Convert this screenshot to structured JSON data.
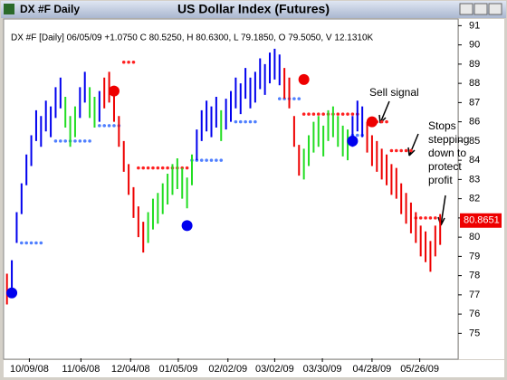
{
  "window_title": "DX #F Daily",
  "chart_data": {
    "type": "hilo",
    "title": "US Dollar Index (Futures)",
    "info": "DX #F [Daily] 06/05/09 +1.0750 C 80.5250, H 80.6300, L 79.1850, O 79.5050, V 12.1310K",
    "xlim": [
      -0.5,
      92.5
    ],
    "xticks": [
      {
        "value": 4.6,
        "label": "10/09/08"
      },
      {
        "value": 15.2,
        "label": "11/06/08"
      },
      {
        "value": 25.4,
        "label": "12/04/08"
      },
      {
        "value": 35.2,
        "label": "01/05/09"
      },
      {
        "value": 45.4,
        "label": "02/02/09"
      },
      {
        "value": 55,
        "label": "03/02/09"
      },
      {
        "value": 64.8,
        "label": "03/30/09"
      },
      {
        "value": 75,
        "label": "04/28/09"
      },
      {
        "value": 84.8,
        "label": "05/26/09"
      }
    ],
    "ylim": [
      73.7,
      91.3
    ],
    "yticks": [
      75,
      76,
      77,
      78,
      79,
      80,
      81,
      82,
      83,
      84,
      85,
      86,
      87,
      88,
      89,
      90,
      91
    ],
    "bars": {
      "low": [
        76.5,
        77.2,
        79.7,
        81.2,
        82.7,
        83.7,
        85.0,
        84.7,
        85.5,
        85.2,
        86.2,
        86.7,
        85.7,
        84.7,
        85.2,
        86.2,
        87.0,
        86.2,
        85.7,
        86.0,
        86.7,
        87.0,
        86.0,
        84.7,
        83.4,
        82.2,
        81.0,
        80.0,
        79.2,
        79.7,
        80.4,
        80.7,
        81.2,
        81.7,
        82.2,
        82.5,
        82.0,
        81.5,
        82.7,
        84.0,
        85.0,
        85.5,
        85.2,
        85.7,
        85.0,
        85.6,
        86.0,
        86.7,
        86.4,
        87.2,
        86.7,
        87.0,
        87.7,
        87.4,
        88.0,
        88.2,
        87.9,
        87.2,
        86.7,
        84.7,
        83.2,
        83.0,
        83.7,
        84.4,
        84.7,
        84.2,
        85.0,
        85.2,
        84.7,
        84.2,
        84.0,
        84.7,
        85.5,
        85.2,
        84.4,
        83.7,
        83.4,
        83.0,
        82.7,
        82.2,
        82.0,
        81.2,
        80.7,
        80.2,
        79.7,
        79.0,
        78.7,
        78.2,
        79.0,
        79.6
      ],
      "high": [
        78.1,
        78.8,
        81.3,
        82.8,
        84.3,
        85.3,
        86.6,
        86.3,
        87.1,
        86.8,
        87.8,
        88.3,
        87.3,
        86.3,
        86.8,
        87.8,
        88.6,
        87.8,
        87.3,
        87.6,
        88.3,
        88.6,
        87.6,
        86.3,
        85.0,
        83.8,
        82.6,
        81.6,
        80.8,
        81.3,
        82.0,
        82.3,
        82.8,
        83.3,
        83.8,
        84.1,
        83.6,
        83.1,
        84.3,
        85.6,
        86.6,
        87.1,
        86.8,
        87.3,
        86.6,
        87.2,
        87.6,
        88.3,
        88.0,
        88.8,
        88.3,
        88.6,
        89.3,
        89.0,
        89.6,
        89.8,
        89.5,
        88.8,
        88.3,
        86.3,
        84.8,
        84.6,
        85.3,
        86.0,
        86.3,
        85.8,
        86.6,
        86.8,
        86.3,
        85.8,
        85.6,
        86.3,
        87.1,
        86.8,
        86.0,
        85.3,
        85.0,
        84.6,
        84.3,
        83.8,
        83.6,
        82.8,
        82.3,
        81.8,
        81.3,
        80.6,
        80.3,
        79.8,
        80.6,
        81.2
      ],
      "colors": [
        "#ee0000",
        "#0000ee",
        "#0000ee",
        "#0000ee",
        "#0000ee",
        "#0000ee",
        "#0000ee",
        "#0000ee",
        "#0000ee",
        "#0000ee",
        "#0000ee",
        "#0000ee",
        "#22dd22",
        "#22dd22",
        "#22dd22",
        "#0000ee",
        "#0000ee",
        "#22dd22",
        "#22dd22",
        "#0000ee",
        "#ee0000",
        "#ee0000",
        "#ee0000",
        "#ee0000",
        "#ee0000",
        "#ee0000",
        "#ee0000",
        "#ee0000",
        "#ee0000",
        "#22dd22",
        "#22dd22",
        "#22dd22",
        "#22dd22",
        "#22dd22",
        "#22dd22",
        "#22dd22",
        "#22dd22",
        "#22dd22",
        "#22dd22",
        "#0000ee",
        "#0000ee",
        "#0000ee",
        "#0000ee",
        "#0000ee",
        "#22dd22",
        "#0000ee",
        "#0000ee",
        "#0000ee",
        "#0000ee",
        "#0000ee",
        "#0000ee",
        "#0000ee",
        "#0000ee",
        "#0000ee",
        "#0000ee",
        "#0000ee",
        "#0000ee",
        "#ee0000",
        "#ee0000",
        "#ee0000",
        "#ee0000",
        "#22dd22",
        "#22dd22",
        "#22dd22",
        "#22dd22",
        "#22dd22",
        "#22dd22",
        "#22dd22",
        "#22dd22",
        "#22dd22",
        "#22dd22",
        "#0000ee",
        "#0000ee",
        "#0000ee",
        "#ee0000",
        "#ee0000",
        "#ee0000",
        "#ee0000",
        "#ee0000",
        "#ee0000",
        "#ee0000",
        "#ee0000",
        "#ee0000",
        "#ee0000",
        "#ee0000",
        "#ee0000",
        "#ee0000",
        "#ee0000",
        "#ee0000",
        "#ee0000"
      ]
    },
    "stops": [
      {
        "color": "#4f7fff",
        "x": [
          3,
          4,
          5,
          6,
          7,
          10,
          11,
          12,
          13,
          14,
          15,
          16,
          17,
          19,
          20,
          21,
          22,
          23,
          38,
          39,
          40,
          41,
          42,
          43,
          44,
          47,
          48,
          49,
          50,
          51,
          56,
          57,
          58,
          59,
          60,
          71,
          72,
          73
        ],
        "values": [
          79.7,
          79.7,
          79.7,
          79.7,
          79.7,
          85.0,
          85.0,
          85.0,
          85.0,
          85.0,
          85.0,
          85.0,
          85.0,
          85.8,
          85.8,
          85.8,
          85.8,
          85.8,
          84.0,
          84.0,
          84.0,
          84.0,
          84.0,
          84.0,
          84.0,
          86.0,
          86.0,
          86.0,
          86.0,
          86.0,
          87.2,
          87.2,
          87.2,
          87.2,
          87.2,
          85.3,
          85.3,
          85.3
        ]
      },
      {
        "color": "#ff2020",
        "x": [
          24,
          25,
          26,
          27,
          28,
          29,
          30,
          31,
          32,
          33,
          34,
          35,
          36,
          37,
          61,
          62,
          63,
          64,
          65,
          66,
          67,
          68,
          69,
          70,
          71,
          72,
          75,
          76,
          77,
          78,
          79,
          80,
          81,
          82,
          83,
          84,
          85,
          86,
          87,
          88
        ],
        "values": [
          89.1,
          89.1,
          89.1,
          83.6,
          83.6,
          83.6,
          83.6,
          83.6,
          83.6,
          83.6,
          83.6,
          83.6,
          83.6,
          83.6,
          86.4,
          86.4,
          86.4,
          86.4,
          86.4,
          86.4,
          86.4,
          86.4,
          86.4,
          86.4,
          86.4,
          86.4,
          86.0,
          86.0,
          86.0,
          86.0,
          84.5,
          84.5,
          84.5,
          84.5,
          84.5,
          81.0,
          81.0,
          81.0,
          81.0,
          81.0
        ]
      }
    ],
    "signals": {
      "x": [
        1,
        22,
        37,
        61,
        71,
        75
      ],
      "values": [
        77.1,
        87.6,
        80.6,
        88.2,
        85.0,
        86.0
      ],
      "colors": [
        "#0000ee",
        "#ee0000",
        "#0000ee",
        "#ee0000",
        "#0000ee",
        "#ee0000"
      ]
    },
    "last_price": 80.8651,
    "annotations": {
      "sell": "Sell signal",
      "stops": [
        "Stops",
        "stepping",
        "down to",
        "protect",
        "profit"
      ]
    }
  }
}
